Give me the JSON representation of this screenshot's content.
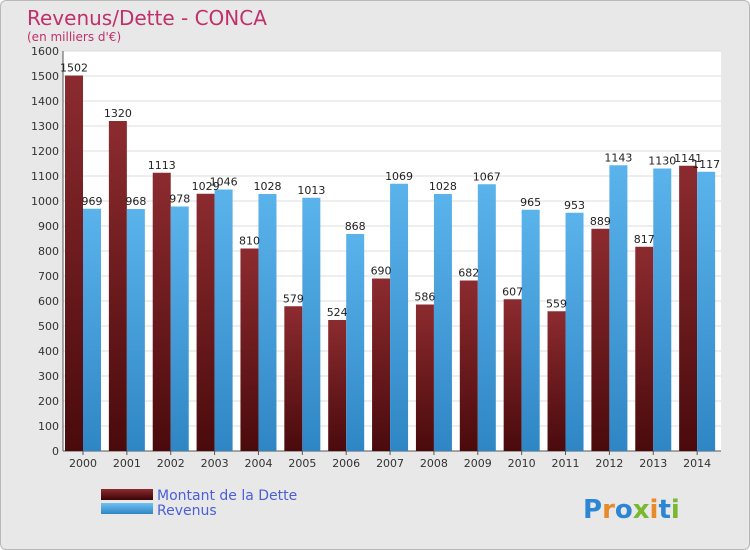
{
  "colors": {
    "title": "#c0306a",
    "dette": "#7a1f22",
    "revenus": "#4aa3df",
    "legend_text": "#4a5fd8",
    "plot_bg": "#ffffff",
    "grid": "#dcdcdc"
  },
  "chart_data": {
    "type": "bar",
    "title": "Revenus/Dette - CONCA",
    "subtitle": "(en milliers d'€)",
    "xlabel": "",
    "ylabel": "",
    "ylim": [
      0,
      1600
    ],
    "y_ticks": [
      0,
      100,
      200,
      300,
      400,
      500,
      600,
      700,
      800,
      900,
      1000,
      1100,
      1200,
      1300,
      1400,
      1500,
      1600
    ],
    "categories": [
      "2000",
      "2001",
      "2002",
      "2003",
      "2004",
      "2005",
      "2006",
      "2007",
      "2008",
      "2009",
      "2010",
      "2011",
      "2012",
      "2013",
      "2014"
    ],
    "series": [
      {
        "name": "Montant de la Dette",
        "color": "#7a1f22",
        "values": [
          1502,
          1320,
          1113,
          1029,
          810,
          579,
          524,
          690,
          586,
          682,
          607,
          559,
          889,
          817,
          1141
        ]
      },
      {
        "name": "Revenus",
        "color": "#4aa3df",
        "values": [
          969,
          968,
          978,
          1046,
          1028,
          1013,
          868,
          1069,
          1028,
          1067,
          965,
          953,
          1143,
          1130,
          1117
        ]
      }
    ],
    "grid": true,
    "legend_position": "bottom-left"
  },
  "logo": {
    "text": "Proxiti"
  }
}
